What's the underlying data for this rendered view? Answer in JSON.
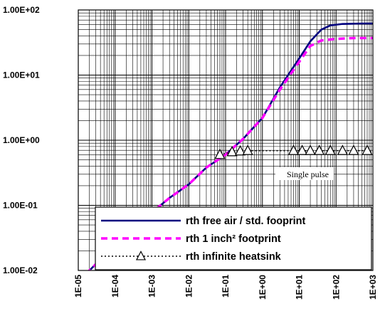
{
  "chart_data": {
    "type": "line",
    "x_scale": "log",
    "y_scale": "log",
    "xlim": [
      1e-05,
      1000
    ],
    "ylim": [
      0.01,
      100
    ],
    "x_ticks": [
      1e-05,
      0.0001,
      0.001,
      0.01,
      0.1,
      1,
      10,
      100,
      1000
    ],
    "x_tick_labels": [
      "1E-05",
      "1E-04",
      "1E-03",
      "1E-02",
      "1E-01",
      "1E+00",
      "1E+01",
      "1E+02",
      "1E+03"
    ],
    "y_ticks": [
      0.01,
      0.1,
      1,
      10,
      100
    ],
    "y_tick_labels": [
      "1.00E-02",
      "1.00E-01",
      "1.00E+00",
      "1.00E+01",
      "1.00E+02"
    ],
    "grid": true,
    "legend_position": "bottom-right",
    "annotation": "Single pulse",
    "series": [
      {
        "name": "rth free air / std. fooprint",
        "style": "solid",
        "color": "#00007f",
        "points": [
          [
            1e-05,
            0.0068
          ],
          [
            3e-05,
            0.0125
          ],
          [
            0.0001,
            0.021
          ],
          [
            0.0003,
            0.04
          ],
          [
            0.001,
            0.078
          ],
          [
            0.003,
            0.13
          ],
          [
            0.01,
            0.21
          ],
          [
            0.03,
            0.38
          ],
          [
            0.1,
            0.6
          ],
          [
            0.3,
            1.05
          ],
          [
            1,
            2.2
          ],
          [
            3,
            6.5
          ],
          [
            10,
            18
          ],
          [
            20,
            33
          ],
          [
            40,
            50
          ],
          [
            70,
            58
          ],
          [
            150,
            61
          ],
          [
            500,
            62
          ],
          [
            1000,
            62
          ]
        ]
      },
      {
        "name": "rth 1 inch² footprint",
        "style": "dashed",
        "color": "#ff00ff",
        "points": [
          [
            1e-05,
            0.0068
          ],
          [
            3e-05,
            0.0125
          ],
          [
            0.0001,
            0.021
          ],
          [
            0.0003,
            0.04
          ],
          [
            0.001,
            0.078
          ],
          [
            0.003,
            0.13
          ],
          [
            0.01,
            0.21
          ],
          [
            0.03,
            0.38
          ],
          [
            0.1,
            0.6
          ],
          [
            0.3,
            1.05
          ],
          [
            1,
            2.2
          ],
          [
            3,
            6.0
          ],
          [
            10,
            16
          ],
          [
            20,
            28
          ],
          [
            40,
            34
          ],
          [
            100,
            36
          ],
          [
            300,
            37
          ],
          [
            1000,
            37
          ]
        ]
      },
      {
        "name": "rth infinite heatsink",
        "style": "dotted",
        "color": "#000000",
        "marker": "triangle",
        "points": [
          [
            0.07,
            0.6
          ],
          [
            0.15,
            0.66
          ],
          [
            0.25,
            0.68
          ],
          [
            0.4,
            0.69
          ],
          [
            7,
            0.69
          ],
          [
            12,
            0.69
          ],
          [
            20,
            0.69
          ],
          [
            35,
            0.69
          ],
          [
            70,
            0.69
          ],
          [
            150,
            0.69
          ],
          [
            300,
            0.69
          ],
          [
            700,
            0.69
          ]
        ]
      }
    ]
  }
}
